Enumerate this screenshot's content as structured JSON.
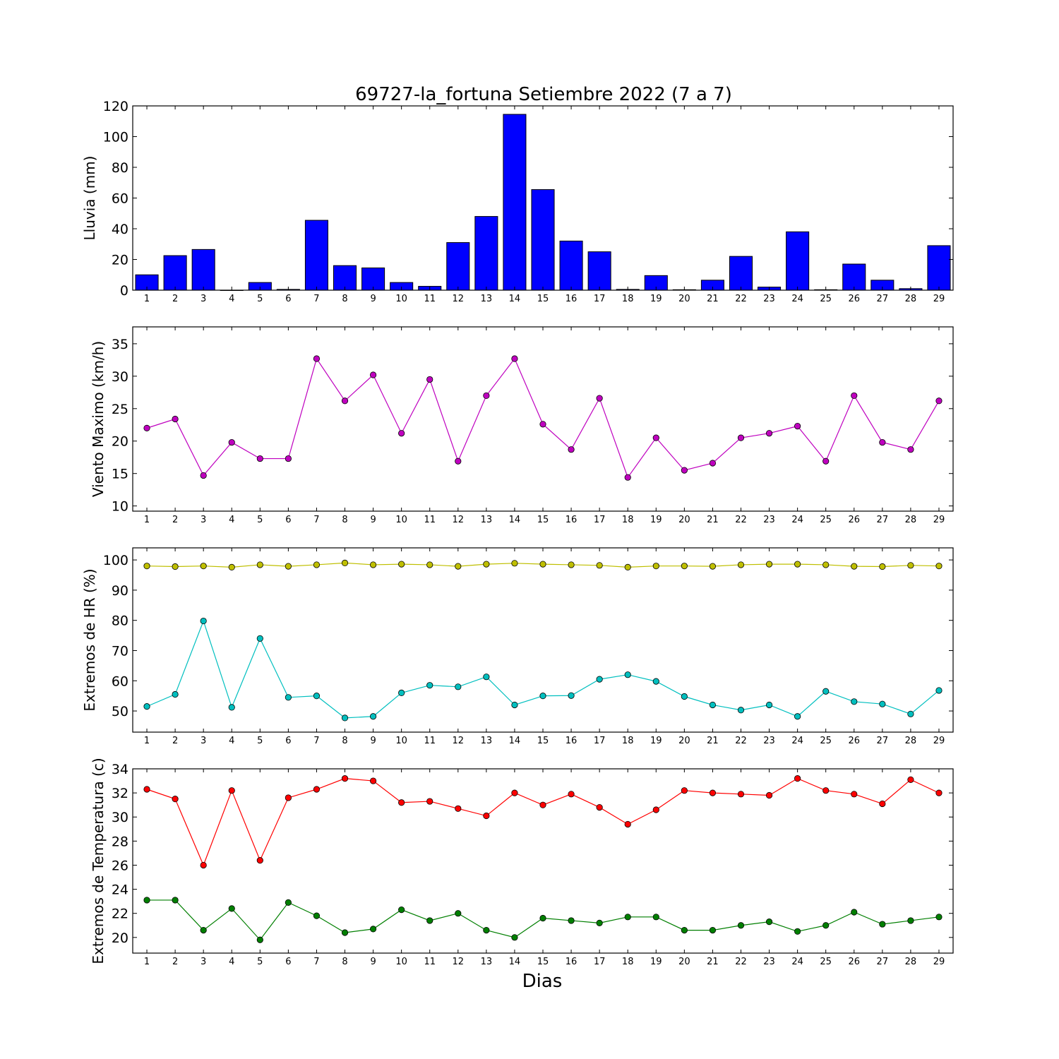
{
  "title": "69727-la_fortuna Setiembre 2022  (7 a 7)",
  "xlabel": "Dias",
  "chart_data": [
    {
      "type": "bar",
      "ylabel": "Lluvia (mm)",
      "ylim": [
        0,
        120
      ],
      "yticks": [
        0,
        20,
        40,
        60,
        80,
        100,
        120
      ],
      "categories": [
        "1",
        "2",
        "3",
        "4",
        "5",
        "6",
        "7",
        "8",
        "9",
        "10",
        "11",
        "12",
        "13",
        "14",
        "15",
        "16",
        "17",
        "18",
        "19",
        "20",
        "21",
        "22",
        "23",
        "24",
        "25",
        "26",
        "27",
        "28",
        "29"
      ],
      "values": [
        10,
        22.5,
        26.5,
        0,
        5,
        0.5,
        45.5,
        16,
        14.5,
        5,
        2.5,
        31,
        48,
        114.5,
        65.5,
        32,
        25,
        0.5,
        9.5,
        0.3,
        6.5,
        22,
        2,
        38,
        0.3,
        17,
        6.5,
        1,
        29
      ],
      "colors": {
        "bar": "#0000ff"
      }
    },
    {
      "type": "line",
      "ylabel": "Viento Maximo (km/h)",
      "ylim": [
        9.2,
        37.6
      ],
      "yticks": [
        10,
        15,
        20,
        25,
        30,
        35
      ],
      "x": [
        1,
        2,
        3,
        4,
        5,
        6,
        7,
        8,
        9,
        10,
        11,
        12,
        13,
        14,
        15,
        16,
        17,
        18,
        19,
        20,
        21,
        22,
        23,
        24,
        25,
        26,
        27,
        28,
        29
      ],
      "series": [
        {
          "values": [
            22.0,
            23.4,
            14.7,
            19.8,
            17.3,
            17.3,
            32.7,
            26.2,
            30.2,
            21.2,
            29.5,
            16.9,
            27.0,
            32.7,
            22.6,
            18.7,
            26.6,
            14.4,
            20.5,
            15.5,
            16.6,
            20.5,
            21.2,
            22.3,
            16.9,
            27.0,
            19.8,
            18.7,
            26.2
          ],
          "color": "#bf00bf"
        }
      ]
    },
    {
      "type": "line",
      "ylabel": "Extremos de HR (%)",
      "ylim": [
        43,
        104
      ],
      "yticks": [
        50,
        60,
        70,
        80,
        90,
        100
      ],
      "x": [
        1,
        2,
        3,
        4,
        5,
        6,
        7,
        8,
        9,
        10,
        11,
        12,
        13,
        14,
        15,
        16,
        17,
        18,
        19,
        20,
        21,
        22,
        23,
        24,
        25,
        26,
        27,
        28,
        29
      ],
      "series": [
        {
          "values": [
            98.0,
            97.8,
            98.0,
            97.6,
            98.4,
            97.9,
            98.4,
            99.0,
            98.4,
            98.6,
            98.4,
            97.9,
            98.6,
            98.9,
            98.6,
            98.4,
            98.2,
            97.6,
            98.0,
            98.0,
            97.9,
            98.4,
            98.6,
            98.6,
            98.4,
            97.9,
            97.8,
            98.2,
            98.0
          ],
          "color": "#bfbf00"
        },
        {
          "values": [
            51.5,
            55.5,
            79.8,
            51.2,
            74.0,
            54.5,
            55.0,
            47.7,
            48.2,
            56.0,
            58.5,
            58.0,
            61.3,
            52.0,
            55.0,
            55.1,
            60.5,
            62.0,
            59.8,
            54.8,
            52.0,
            50.3,
            52.0,
            48.2,
            56.5,
            53.1,
            52.3,
            49.0,
            56.8
          ],
          "color": "#00bfbf"
        }
      ]
    },
    {
      "type": "line",
      "ylabel": "Extremos de Temperatura (c)",
      "ylim": [
        18.7,
        34.0
      ],
      "yticks": [
        20,
        22,
        24,
        26,
        28,
        30,
        32,
        34
      ],
      "x": [
        1,
        2,
        3,
        4,
        5,
        6,
        7,
        8,
        9,
        10,
        11,
        12,
        13,
        14,
        15,
        16,
        17,
        18,
        19,
        20,
        21,
        22,
        23,
        24,
        25,
        26,
        27,
        28,
        29
      ],
      "series": [
        {
          "values": [
            32.3,
            31.5,
            26.0,
            32.2,
            26.4,
            31.6,
            32.3,
            33.2,
            33.0,
            31.2,
            31.3,
            30.7,
            30.1,
            32.0,
            31.0,
            31.9,
            30.8,
            29.4,
            30.6,
            32.2,
            32.0,
            31.9,
            31.8,
            33.2,
            32.2,
            31.9,
            31.1,
            33.1,
            32.0
          ],
          "color": "#ff0000"
        },
        {
          "values": [
            23.1,
            23.1,
            20.6,
            22.4,
            19.8,
            22.9,
            21.8,
            20.4,
            20.7,
            22.3,
            21.4,
            22.0,
            20.6,
            20.0,
            21.6,
            21.4,
            21.2,
            21.7,
            21.7,
            20.6,
            20.6,
            21.0,
            21.3,
            20.5,
            21.0,
            22.1,
            21.1,
            21.4,
            21.7
          ],
          "color": "#007f00"
        }
      ]
    }
  ]
}
